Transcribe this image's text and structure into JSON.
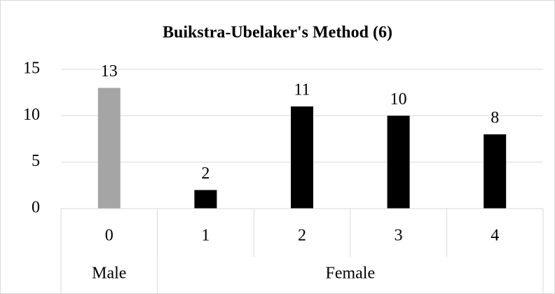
{
  "chart_data": {
    "type": "bar",
    "title": "Buikstra-Ubelaker's Method (6)",
    "categories": [
      "0",
      "1",
      "2",
      "3",
      "4"
    ],
    "values": [
      13,
      2,
      11,
      10,
      8
    ],
    "colors": [
      "#a5a5a5",
      "#000000",
      "#000000",
      "#000000",
      "#000000"
    ],
    "groups": [
      {
        "name": "Male",
        "size": 1
      },
      {
        "name": "Female",
        "size": 4
      }
    ],
    "ylim": [
      0,
      15
    ],
    "yticks": [
      0,
      5,
      10,
      15
    ],
    "grid": true
  }
}
